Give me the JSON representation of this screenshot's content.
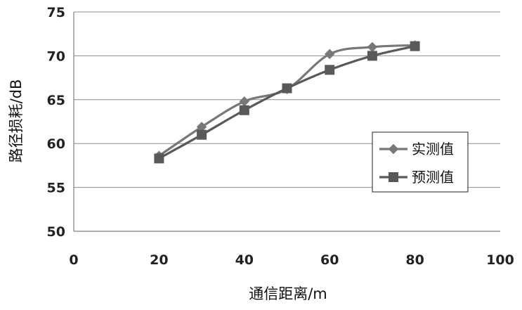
{
  "chart_data": {
    "type": "line",
    "xlabel": "通信距离/m",
    "ylabel": "路径损耗/dB",
    "xlim": [
      0,
      100
    ],
    "ylim": [
      50,
      75
    ],
    "xticks": [
      0,
      20,
      40,
      60,
      80,
      100
    ],
    "yticks": [
      50,
      55,
      60,
      65,
      70,
      75
    ],
    "grid": "horizontal",
    "legend_position": "right",
    "series": [
      {
        "name": "实测值",
        "marker": "diamond",
        "color": "#777777",
        "x": [
          20,
          30,
          40,
          50,
          60,
          70,
          80
        ],
        "y": [
          58.6,
          61.9,
          64.8,
          66.2,
          70.2,
          71.0,
          71.2
        ]
      },
      {
        "name": "预测值",
        "marker": "square",
        "color": "#595959",
        "x": [
          20,
          30,
          40,
          50,
          60,
          70,
          80
        ],
        "y": [
          58.3,
          61.0,
          63.8,
          66.3,
          68.4,
          70.0,
          71.1
        ]
      }
    ]
  }
}
